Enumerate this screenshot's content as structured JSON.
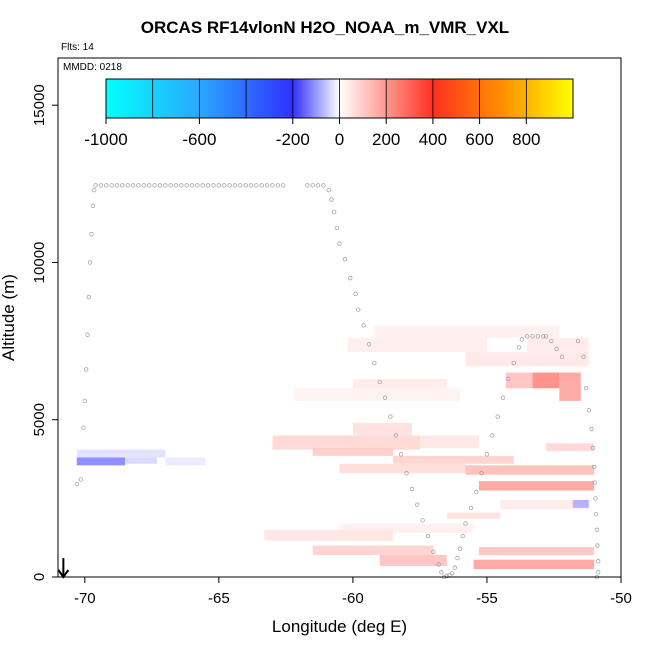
{
  "title": "ORCAS RF14vlonN H2O_NOAA_m_VMR_VXL",
  "flts_text": "Flts: 14",
  "mmdd_text": "MMDD: 0218",
  "chart_data": {
    "type": "heatmap",
    "xlabel": "Longitude (deg E)",
    "ylabel": "Altitude (m)",
    "xlim": [
      -71.0,
      -50.0
    ],
    "ylim": [
      0,
      16500
    ],
    "x_ticks": [
      -70,
      -65,
      -60,
      -55,
      -50
    ],
    "x_tick_labels": [
      "-70",
      "-65",
      "-60",
      "-55",
      "-50"
    ],
    "y_ticks": [
      0,
      5000,
      10000,
      15000
    ],
    "y_tick_labels": [
      "0",
      "5000",
      "10000",
      "15000"
    ],
    "colorbar": {
      "range": [
        -1000,
        1000
      ],
      "ticks": [
        -1000,
        -600,
        -200,
        0,
        200,
        400,
        600,
        800
      ],
      "tick_labels": [
        "-1000",
        "-600",
        "-200",
        "0",
        "200",
        "400",
        "600",
        "800"
      ],
      "colors": {
        "min": "#00ffff",
        "cyan_blue": "#2aa8ff",
        "blue": "#3030ff",
        "mid": "#ffffff",
        "red": "#ff3020",
        "orange": "#ff9000",
        "max": "#ffff00"
      }
    },
    "cells": [
      {
        "x0": -70.3,
        "x1": -68.5,
        "y0": 3550,
        "y1": 3800,
        "value": -120
      },
      {
        "x0": -68.5,
        "x1": -67.3,
        "y0": 3600,
        "y1": 3800,
        "value": -40
      },
      {
        "x0": -70.3,
        "x1": -67.0,
        "y0": 3800,
        "y1": 4050,
        "value": -30
      },
      {
        "x0": -67.0,
        "x1": -65.5,
        "y0": 3550,
        "y1": 3800,
        "value": -20
      },
      {
        "x0": -59.2,
        "x1": -52.3,
        "y0": 7600,
        "y1": 8000,
        "value": 30
      },
      {
        "x0": -60.2,
        "x1": -55.0,
        "y0": 7150,
        "y1": 7600,
        "value": 35
      },
      {
        "x0": -53.5,
        "x1": -51.2,
        "y0": 7150,
        "y1": 7600,
        "value": 40
      },
      {
        "x0": -55.8,
        "x1": -51.2,
        "y0": 6700,
        "y1": 7150,
        "value": 45
      },
      {
        "x0": -53.3,
        "x1": -52.3,
        "y0": 6000,
        "y1": 6500,
        "value": 230
      },
      {
        "x0": -52.3,
        "x1": -51.5,
        "y0": 5600,
        "y1": 6500,
        "value": 180
      },
      {
        "x0": -54.3,
        "x1": -53.3,
        "y0": 6000,
        "y1": 6500,
        "value": 120
      },
      {
        "x0": -60.0,
        "x1": -56.5,
        "y0": 6000,
        "y1": 6300,
        "value": 40
      },
      {
        "x0": -62.2,
        "x1": -56.0,
        "y0": 5600,
        "y1": 6000,
        "value": 25
      },
      {
        "x0": -60.0,
        "x1": -57.8,
        "y0": 4500,
        "y1": 4900,
        "value": 60
      },
      {
        "x0": -63.0,
        "x1": -57.5,
        "y0": 4050,
        "y1": 4500,
        "value": 80
      },
      {
        "x0": -57.5,
        "x1": -55.3,
        "y0": 4100,
        "y1": 4500,
        "value": 50
      },
      {
        "x0": -61.5,
        "x1": -58.5,
        "y0": 3850,
        "y1": 4100,
        "value": 100
      },
      {
        "x0": -58.5,
        "x1": -54.0,
        "y0": 3600,
        "y1": 3850,
        "value": 90
      },
      {
        "x0": -60.5,
        "x1": -55.8,
        "y0": 3300,
        "y1": 3600,
        "value": 70
      },
      {
        "x0": -55.8,
        "x1": -51.0,
        "y0": 3250,
        "y1": 3550,
        "value": 130
      },
      {
        "x0": -55.3,
        "x1": -51.0,
        "y0": 2750,
        "y1": 3050,
        "value": 180
      },
      {
        "x0": -52.8,
        "x1": -51.0,
        "y0": 4000,
        "y1": 4250,
        "value": 80
      },
      {
        "x0": -54.5,
        "x1": -51.2,
        "y0": 2150,
        "y1": 2450,
        "value": 40
      },
      {
        "x0": -56.5,
        "x1": -54.5,
        "y0": 1850,
        "y1": 2050,
        "value": 60
      },
      {
        "x0": -51.8,
        "x1": -51.2,
        "y0": 2200,
        "y1": 2450,
        "value": -80
      },
      {
        "x0": -60.5,
        "x1": -55.5,
        "y0": 1400,
        "y1": 1700,
        "value": 30
      },
      {
        "x0": -63.3,
        "x1": -58.5,
        "y0": 1150,
        "y1": 1500,
        "value": 50
      },
      {
        "x0": -61.5,
        "x1": -57.0,
        "y0": 700,
        "y1": 1000,
        "value": 90
      },
      {
        "x0": -59.0,
        "x1": -56.5,
        "y0": 350,
        "y1": 700,
        "value": 120
      },
      {
        "x0": -55.3,
        "x1": -51.0,
        "y0": 700,
        "y1": 950,
        "value": 120
      },
      {
        "x0": -55.5,
        "x1": -51.0,
        "y0": 250,
        "y1": 550,
        "value": 180
      }
    ],
    "track_points": [
      [
        -70.3,
        2950
      ],
      [
        -70.15,
        3100
      ],
      [
        -70.05,
        4750
      ],
      [
        -70.0,
        5600
      ],
      [
        -69.95,
        6600
      ],
      [
        -69.9,
        7700
      ],
      [
        -69.85,
        8900
      ],
      [
        -69.8,
        10000
      ],
      [
        -69.75,
        10900
      ],
      [
        -69.7,
        11800
      ],
      [
        -69.65,
        12300
      ],
      [
        -69.6,
        12450
      ],
      [
        -69.4,
        12450
      ],
      [
        -69.2,
        12450
      ],
      [
        -69.0,
        12450
      ],
      [
        -68.8,
        12450
      ],
      [
        -68.6,
        12450
      ],
      [
        -68.4,
        12450
      ],
      [
        -68.2,
        12450
      ],
      [
        -68.0,
        12450
      ],
      [
        -67.8,
        12450
      ],
      [
        -67.6,
        12450
      ],
      [
        -67.4,
        12450
      ],
      [
        -67.2,
        12450
      ],
      [
        -67.0,
        12450
      ],
      [
        -66.8,
        12450
      ],
      [
        -66.6,
        12450
      ],
      [
        -66.4,
        12450
      ],
      [
        -66.2,
        12450
      ],
      [
        -66.0,
        12450
      ],
      [
        -65.8,
        12450
      ],
      [
        -65.6,
        12450
      ],
      [
        -65.4,
        12450
      ],
      [
        -65.2,
        12450
      ],
      [
        -65.0,
        12450
      ],
      [
        -64.8,
        12450
      ],
      [
        -64.6,
        12450
      ],
      [
        -64.4,
        12450
      ],
      [
        -64.2,
        12450
      ],
      [
        -64.0,
        12450
      ],
      [
        -63.8,
        12450
      ],
      [
        -63.6,
        12450
      ],
      [
        -63.4,
        12450
      ],
      [
        -63.2,
        12450
      ],
      [
        -63.0,
        12450
      ],
      [
        -62.8,
        12450
      ],
      [
        -62.6,
        12450
      ],
      [
        -61.7,
        12450
      ],
      [
        -61.5,
        12450
      ],
      [
        -61.3,
        12450
      ],
      [
        -61.1,
        12450
      ],
      [
        -60.9,
        12300
      ],
      [
        -60.8,
        12000
      ],
      [
        -60.7,
        11600
      ],
      [
        -60.6,
        11100
      ],
      [
        -60.5,
        10600
      ],
      [
        -60.3,
        10100
      ],
      [
        -60.1,
        9500
      ],
      [
        -59.9,
        9000
      ],
      [
        -59.8,
        8500
      ],
      [
        -59.6,
        8000
      ],
      [
        -59.4,
        7400
      ],
      [
        -59.2,
        6800
      ],
      [
        -59.0,
        6200
      ],
      [
        -58.8,
        5700
      ],
      [
        -58.6,
        5100
      ],
      [
        -58.4,
        4500
      ],
      [
        -58.2,
        3900
      ],
      [
        -58.0,
        3300
      ],
      [
        -57.8,
        2800
      ],
      [
        -57.6,
        2300
      ],
      [
        -57.4,
        1800
      ],
      [
        -57.2,
        1300
      ],
      [
        -57.0,
        800
      ],
      [
        -56.8,
        400
      ],
      [
        -56.7,
        150
      ],
      [
        -56.6,
        0
      ],
      [
        -56.5,
        30
      ],
      [
        -56.4,
        60
      ],
      [
        -56.3,
        120
      ],
      [
        -56.2,
        300
      ],
      [
        -56.1,
        600
      ],
      [
        -56.0,
        900
      ],
      [
        -55.9,
        1300
      ],
      [
        -55.8,
        1700
      ],
      [
        -55.6,
        2200
      ],
      [
        -55.4,
        2700
      ],
      [
        -55.2,
        3300
      ],
      [
        -55.0,
        3900
      ],
      [
        -54.8,
        4500
      ],
      [
        -54.6,
        5100
      ],
      [
        -54.4,
        5700
      ],
      [
        -54.2,
        6300
      ],
      [
        -54.0,
        6800
      ],
      [
        -53.8,
        7300
      ],
      [
        -53.7,
        7550
      ],
      [
        -53.5,
        7650
      ],
      [
        -53.3,
        7650
      ],
      [
        -53.1,
        7650
      ],
      [
        -52.9,
        7650
      ],
      [
        -52.8,
        7650
      ],
      [
        -52.6,
        7500
      ],
      [
        -52.4,
        7250
      ],
      [
        -52.2,
        7000
      ],
      [
        -51.6,
        7500
      ],
      [
        -51.4,
        7000
      ],
      [
        -51.3,
        6000
      ],
      [
        -51.2,
        5300
      ],
      [
        -51.1,
        4700
      ],
      [
        -51.05,
        4100
      ],
      [
        -51.0,
        3500
      ],
      [
        -50.98,
        3000
      ],
      [
        -50.95,
        2500
      ],
      [
        -50.93,
        2000
      ],
      [
        -50.9,
        1500
      ],
      [
        -50.88,
        1000
      ],
      [
        -50.85,
        500
      ],
      [
        -50.85,
        150
      ],
      [
        -50.9,
        0
      ]
    ],
    "direction_arrow": {
      "x": -70.8,
      "y_from": 600,
      "y_to": 0
    }
  }
}
